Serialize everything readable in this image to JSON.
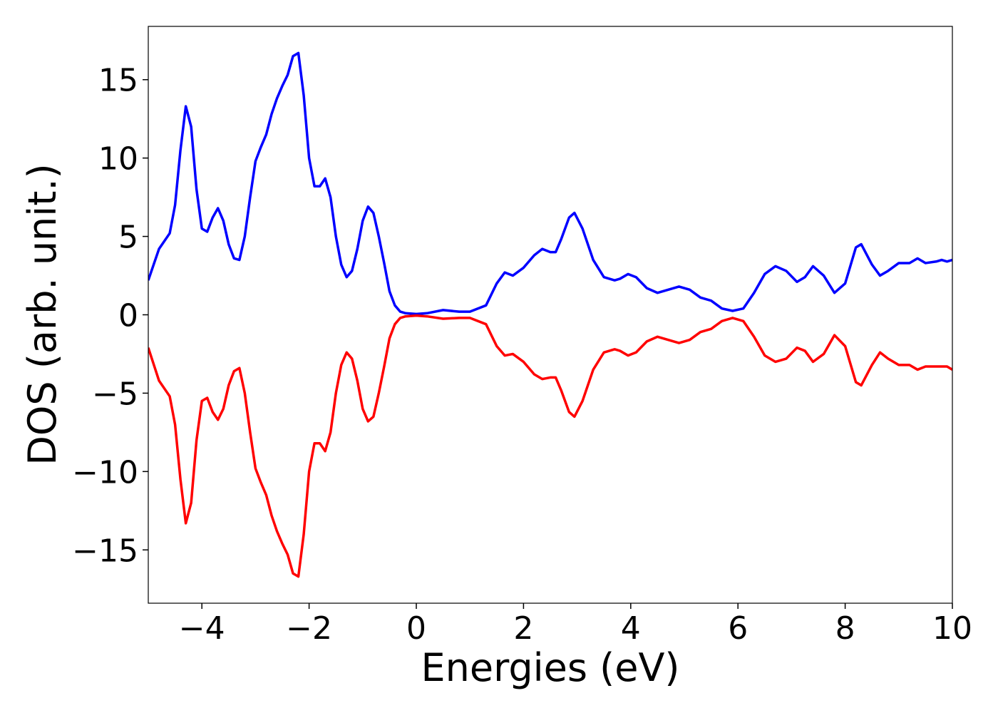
{
  "chart_data": {
    "type": "line",
    "xlabel": "Energies (eV)",
    "ylabel": "DOS (arb. unit.)",
    "x": [
      -5,
      -4.8,
      -4.6,
      -4.5,
      -4.4,
      -4.3,
      -4.2,
      -4.1,
      -4,
      -3.9,
      -3.8,
      -3.7,
      -3.6,
      -3.5,
      -3.4,
      -3.3,
      -3.2,
      -3.1,
      -3,
      -2.9,
      -2.8,
      -2.7,
      -2.6,
      -2.5,
      -2.4,
      -2.3,
      -2.2,
      -2.1,
      -2,
      -1.9,
      -1.8,
      -1.7,
      -1.6,
      -1.5,
      -1.4,
      -1.3,
      -1.2,
      -1.1,
      -1,
      -0.9,
      -0.8,
      -0.7,
      -0.6,
      -0.5,
      -0.4,
      -0.3,
      -0.2,
      0,
      0.2,
      0.5,
      0.8,
      1,
      1.3,
      1.5,
      1.65,
      1.8,
      2,
      2.2,
      2.35,
      2.5,
      2.6,
      2.7,
      2.85,
      2.95,
      3.1,
      3.3,
      3.5,
      3.7,
      3.8,
      3.95,
      4.1,
      4.3,
      4.5,
      4.7,
      4.9,
      5.1,
      5.3,
      5.5,
      5.7,
      5.9,
      6.1,
      6.3,
      6.5,
      6.7,
      6.9,
      7.1,
      7.25,
      7.4,
      7.6,
      7.8,
      8,
      8.2,
      8.3,
      8.5,
      8.65,
      8.8,
      9,
      9.2,
      9.35,
      9.5,
      9.7,
      9.8,
      9.9,
      10
    ],
    "series": [
      {
        "color": "#0000ff",
        "values": [
          2.2,
          4.2,
          5.2,
          7,
          10.5,
          13.3,
          12,
          8,
          5.5,
          5.3,
          6.2,
          6.8,
          6,
          4.5,
          3.6,
          3.5,
          5,
          7.5,
          9.8,
          10.7,
          11.5,
          12.8,
          13.8,
          14.6,
          15.3,
          16.5,
          16.7,
          14,
          10,
          8.2,
          8.2,
          8.7,
          7.5,
          5,
          3.2,
          2.4,
          2.8,
          4.2,
          6,
          6.9,
          6.5,
          5,
          3.3,
          1.5,
          0.6,
          0.2,
          0.1,
          0.05,
          0.1,
          0.3,
          0.2,
          0.2,
          0.6,
          2,
          2.7,
          2.5,
          3,
          3.8,
          4.2,
          4,
          4,
          4.8,
          6.2,
          6.5,
          5.5,
          3.5,
          2.4,
          2.2,
          2.3,
          2.6,
          2.4,
          1.7,
          1.4,
          1.6,
          1.8,
          1.6,
          1.1,
          0.9,
          0.4,
          0.25,
          0.4,
          1.4,
          2.6,
          3.1,
          2.8,
          2.1,
          2.4,
          3.1,
          2.5,
          1.4,
          2,
          4.3,
          4.5,
          3.2,
          2.5,
          2.8,
          3.3,
          3.3,
          3.6,
          3.3,
          3.4,
          3.5,
          3.4,
          3.5
        ]
      },
      {
        "color": "#ff0000",
        "values": [
          -2.1,
          -4.2,
          -5.2,
          -7,
          -10.5,
          -13.3,
          -12,
          -8,
          -5.5,
          -5.3,
          -6.2,
          -6.7,
          -6,
          -4.5,
          -3.6,
          -3.4,
          -5,
          -7.5,
          -9.8,
          -10.7,
          -11.5,
          -12.8,
          -13.8,
          -14.6,
          -15.3,
          -16.5,
          -16.7,
          -14,
          -10,
          -8.2,
          -8.2,
          -8.7,
          -7.5,
          -5,
          -3.2,
          -2.4,
          -2.8,
          -4.2,
          -6,
          -6.8,
          -6.5,
          -5,
          -3.3,
          -1.5,
          -0.6,
          -0.2,
          -0.1,
          -0.05,
          -0.1,
          -0.25,
          -0.2,
          -0.2,
          -0.6,
          -2,
          -2.6,
          -2.5,
          -3,
          -3.8,
          -4.1,
          -4,
          -4,
          -4.8,
          -6.2,
          -6.5,
          -5.5,
          -3.5,
          -2.4,
          -2.2,
          -2.3,
          -2.6,
          -2.4,
          -1.7,
          -1.4,
          -1.6,
          -1.8,
          -1.6,
          -1.1,
          -0.9,
          -0.4,
          -0.2,
          -0.4,
          -1.4,
          -2.6,
          -3,
          -2.8,
          -2.1,
          -2.3,
          -3,
          -2.5,
          -1.3,
          -2,
          -4.3,
          -4.5,
          -3.2,
          -2.4,
          -2.8,
          -3.2,
          -3.2,
          -3.5,
          -3.3,
          -3.3,
          -3.3,
          -3.3,
          -3.5
        ]
      }
    ],
    "xlim": [
      -5,
      10
    ],
    "xticks": [
      {
        "value": -4,
        "label": "−4"
      },
      {
        "value": -2,
        "label": "−2"
      },
      0,
      2,
      4,
      6,
      8,
      10
    ],
    "ylim": [
      -18.4,
      18.4
    ],
    "yticks": [
      {
        "value": -15,
        "label": "−15"
      },
      {
        "value": -10,
        "label": "−10"
      },
      {
        "value": -5,
        "label": "−5"
      },
      0,
      5,
      10,
      15
    ]
  }
}
